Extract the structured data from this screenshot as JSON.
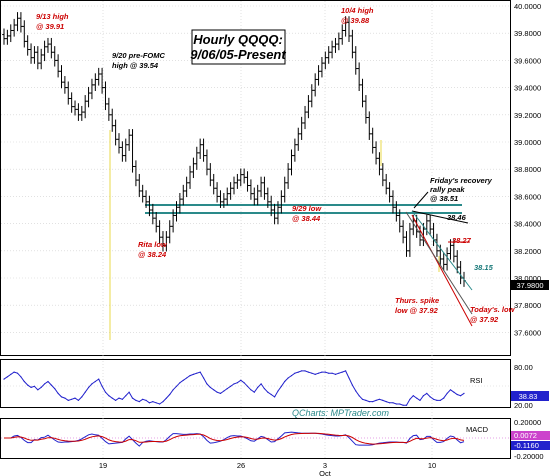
{
  "chart_data": [
    {
      "type": "candlestick",
      "title": [
        "Hourly QQQQ:",
        "9/06/05-Present"
      ],
      "y_ticks": [
        "40.0000",
        "39.8000",
        "39.6000",
        "39.4000",
        "39.2000",
        "39.0000",
        "38.8000",
        "38.6000",
        "38.4000",
        "38.2000",
        "38.0000",
        "37.8000",
        "37.6000"
      ],
      "ylim": [
        37.5,
        40.0
      ],
      "last_price": "37.9800",
      "x_ticks": [
        {
          "label": "19",
          "sub": ""
        },
        {
          "label": "26",
          "sub": ""
        },
        {
          "label": "3",
          "sub": "Oct"
        },
        {
          "label": "10",
          "sub": ""
        }
      ],
      "annotations": [
        {
          "lines": [
            "9/13 high",
            "@ 39.91"
          ],
          "color": "red"
        },
        {
          "lines": [
            "9/20 pre-FOMC",
            "high @ 39.54"
          ],
          "color": "black"
        },
        {
          "lines": [
            "10/4 high",
            "@ 39.88"
          ],
          "color": "red"
        },
        {
          "lines": [
            "Friday's recovery",
            "rally peak",
            "@ 38.51"
          ],
          "color": "black"
        },
        {
          "lines": [
            "9/29 low",
            "@ 38.44"
          ],
          "color": "red"
        },
        {
          "lines": [
            "38.46"
          ],
          "color": "black"
        },
        {
          "lines": [
            "38.27"
          ],
          "color": "red"
        },
        {
          "lines": [
            "38.15"
          ],
          "color": "teal"
        },
        {
          "lines": [
            "Rita low",
            "@ 38.24"
          ],
          "color": "red"
        },
        {
          "lines": [
            "Thurs. spike",
            "low @ 37.92"
          ],
          "color": "red"
        },
        {
          "lines": [
            "Today's. low",
            "@ 37.92"
          ],
          "color": "red"
        }
      ],
      "closes": [
        39.76,
        39.78,
        39.82,
        39.86,
        39.91,
        39.85,
        39.74,
        39.68,
        39.62,
        39.66,
        39.58,
        39.64,
        39.7,
        39.72,
        39.66,
        39.6,
        39.52,
        39.44,
        39.4,
        39.32,
        39.26,
        39.24,
        39.2,
        39.22,
        39.3,
        39.36,
        39.42,
        39.46,
        39.5,
        39.4,
        39.28,
        39.2,
        39.12,
        39.02,
        38.96,
        38.9,
        38.98,
        39.05,
        38.82,
        38.72,
        38.64,
        38.6,
        38.56,
        38.5,
        38.44,
        38.38,
        38.3,
        38.24,
        38.3,
        38.38,
        38.46,
        38.52,
        38.58,
        38.64,
        38.7,
        38.78,
        38.84,
        38.92,
        38.98,
        38.9,
        38.8,
        38.72,
        38.66,
        38.6,
        38.56,
        38.58,
        38.62,
        38.66,
        38.7,
        38.72,
        38.76,
        38.74,
        38.68,
        38.62,
        38.58,
        38.64,
        38.7,
        38.62,
        38.56,
        38.5,
        38.44,
        38.52,
        38.6,
        38.7,
        38.8,
        38.9,
        38.98,
        39.06,
        39.14,
        39.22,
        39.3,
        39.38,
        39.46,
        39.52,
        39.58,
        39.62,
        39.66,
        39.7,
        39.72,
        39.76,
        39.82,
        39.88,
        39.78,
        39.66,
        39.54,
        39.42,
        39.3,
        39.18,
        39.06,
        38.96,
        38.88,
        38.8,
        38.72,
        38.66,
        38.6,
        38.52,
        38.46,
        38.38,
        38.3,
        38.2,
        38.36,
        38.42,
        38.34,
        38.28,
        38.36,
        38.42,
        38.36,
        38.28,
        38.2,
        38.14,
        38.1,
        38.18,
        38.24,
        38.16,
        38.08,
        38.0,
        37.98
      ],
      "rsi": {
        "label": "RSI",
        "value": "38.83",
        "ticks": [
          "80.00",
          "20.00"
        ],
        "values": [
          62,
          66,
          70,
          74,
          72,
          66,
          58,
          52,
          48,
          50,
          44,
          48,
          54,
          58,
          52,
          46,
          38,
          32,
          30,
          26,
          28,
          30,
          26,
          32,
          40,
          48,
          54,
          58,
          62,
          50,
          40,
          34,
          30,
          26,
          30,
          28,
          34,
          40,
          30,
          26,
          24,
          28,
          26,
          22,
          24,
          22,
          20,
          24,
          30,
          36,
          44,
          50,
          56,
          60,
          64,
          68,
          70,
          72,
          74,
          64,
          54,
          48,
          44,
          40,
          38,
          42,
          46,
          50,
          54,
          56,
          60,
          56,
          50,
          44,
          40,
          48,
          54,
          46,
          40,
          36,
          32,
          42,
          50,
          58,
          64,
          68,
          72,
          74,
          76,
          76,
          74,
          72,
          70,
          72,
          74,
          74,
          72,
          72,
          70,
          72,
          74,
          76,
          64,
          52,
          42,
          34,
          28,
          26,
          24,
          24,
          26,
          28,
          26,
          24,
          22,
          22,
          20,
          20,
          18,
          18,
          28,
          34,
          30,
          26,
          34,
          38,
          32,
          28,
          26,
          26,
          30,
          38,
          44,
          40,
          36,
          34,
          38
        ]
      },
      "macd": {
        "label": "MACD",
        "ticks": [
          "0.20000",
          "0.0072",
          "-0.1160",
          "-0.20000"
        ]
      },
      "watermark": "QCharts: MPTrader.com"
    }
  ]
}
